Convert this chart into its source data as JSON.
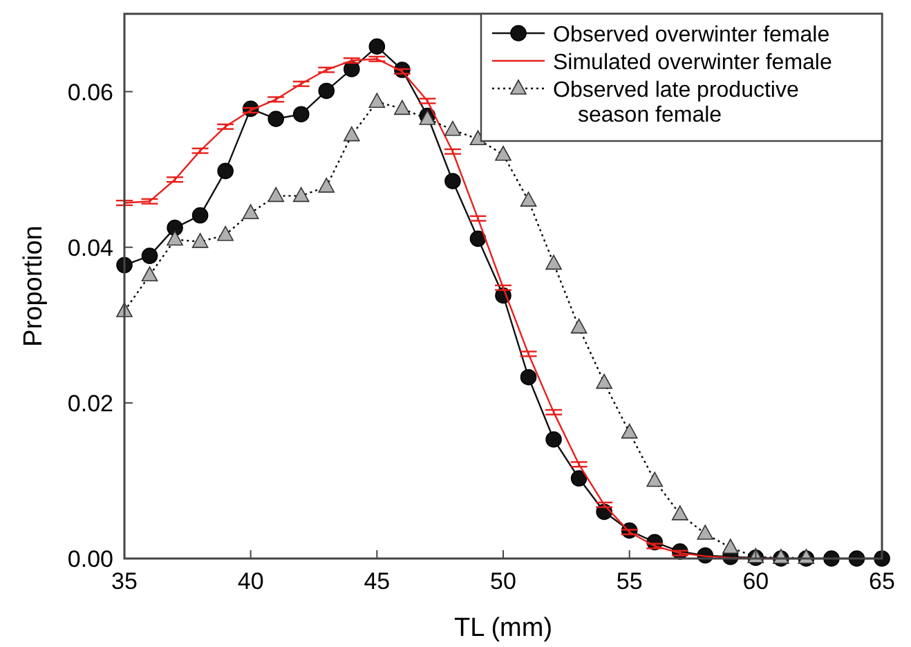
{
  "chart_data": {
    "type": "line",
    "xlabel": "TL (mm)",
    "ylabel": "Proportion",
    "xlim": [
      35,
      65
    ],
    "xticks": [
      35,
      40,
      45,
      50,
      55,
      60,
      65
    ],
    "ylim": [
      0,
      0.07
    ],
    "yticks": [
      {
        "value": 0,
        "label": "0.00"
      },
      {
        "value": 0.02,
        "label": "0.02"
      },
      {
        "value": 0.04,
        "label": "0.04"
      },
      {
        "value": 0.06,
        "label": "0.06"
      }
    ],
    "grid": false,
    "legend": "top right",
    "series": [
      {
        "name": "Observed overwinter female",
        "color": "#111111",
        "marker": "circle",
        "line_style": "solid",
        "x": [
          35,
          36,
          37,
          38,
          39,
          40,
          41,
          42,
          43,
          44,
          45,
          46,
          47,
          48,
          49,
          50,
          51,
          52,
          53,
          54,
          55,
          56,
          57,
          58,
          59,
          60,
          61,
          62,
          63,
          64,
          65
        ],
        "values": [
          0.0377,
          0.0389,
          0.0425,
          0.0441,
          0.0498,
          0.0578,
          0.0565,
          0.0571,
          0.0601,
          0.0629,
          0.0658,
          0.0628,
          0.0569,
          0.0485,
          0.0411,
          0.0338,
          0.0233,
          0.0153,
          0.0103,
          0.006,
          0.0036,
          0.0021,
          0.0009,
          0.0004,
          0.0002,
          0.0001,
          0,
          0,
          0,
          0,
          0
        ]
      },
      {
        "name": "Simulated overwinter female",
        "color": "#e8201c",
        "marker": "none",
        "line_style": "solid",
        "x": [
          35,
          36,
          37,
          38,
          39,
          40,
          41,
          42,
          43,
          44,
          45,
          46,
          47,
          48,
          49,
          50,
          51,
          52,
          53,
          54,
          55,
          56,
          57,
          58,
          59,
          60,
          61
        ],
        "values": [
          0.0457,
          0.0459,
          0.0487,
          0.0524,
          0.0555,
          0.0576,
          0.059,
          0.061,
          0.0628,
          0.064,
          0.0642,
          0.0626,
          0.0588,
          0.0523,
          0.0437,
          0.0348,
          0.0263,
          0.0188,
          0.0121,
          0.0069,
          0.0034,
          0.0016,
          0.0007,
          0.0003,
          0.0001,
          0,
          0
        ],
        "errors": [
          0.0003,
          0.0003,
          0.0003,
          0.0003,
          0.0003,
          0.0003,
          0.0003,
          0.0003,
          0.0003,
          0.0003,
          0.0003,
          0.0003,
          0.0003,
          0.0003,
          0.0003,
          0.0003,
          0.0003,
          0.0003,
          0.0003,
          0.0003,
          0.0003,
          0.0003,
          0.0003,
          null,
          null,
          null,
          null
        ]
      },
      {
        "name": "Observed late productive season female",
        "color": "#b0b0b0",
        "marker": "triangle",
        "line_style": "dotted",
        "x": [
          35,
          36,
          37,
          38,
          39,
          40,
          41,
          42,
          43,
          44,
          45,
          46,
          47,
          48,
          49,
          50,
          51,
          52,
          53,
          54,
          55,
          56,
          57,
          58,
          59,
          60,
          61,
          62
        ],
        "values": [
          0.0318,
          0.0364,
          0.041,
          0.0407,
          0.0416,
          0.0444,
          0.0466,
          0.0466,
          0.0478,
          0.0544,
          0.0587,
          0.0578,
          0.0565,
          0.0551,
          0.0539,
          0.0519,
          0.046,
          0.0379,
          0.0297,
          0.0226,
          0.0162,
          0.01,
          0.0057,
          0.0032,
          0.0014,
          0.0002,
          0.0001,
          0.0001
        ]
      }
    ]
  }
}
